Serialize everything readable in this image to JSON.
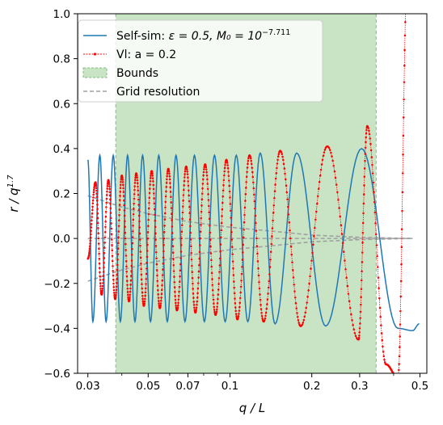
{
  "chart_data": {
    "type": "line",
    "xlabel": "q / L",
    "ylabel": "r / q^1.7",
    "x_scale": "log",
    "xlim": [
      0.0275,
      0.53
    ],
    "ylim": [
      -0.6,
      1.0
    ],
    "x_ticks": [
      0.03,
      0.05,
      0.07,
      0.1,
      0.2,
      0.3,
      0.5
    ],
    "x_tick_labels": [
      "0.03",
      "0.05",
      "0.07",
      "0.1",
      "0.2",
      "0.3",
      "0.5"
    ],
    "y_ticks": [
      -0.6,
      -0.4,
      -0.2,
      0.0,
      0.2,
      0.4,
      0.6,
      0.8,
      1.0
    ],
    "y_tick_labels": [
      "−0.6",
      "−0.4",
      "−0.2",
      "0.0",
      "0.2",
      "0.4",
      "0.6",
      "0.8",
      "1.0"
    ],
    "grid": false,
    "legend_position": "top-left",
    "bounds": {
      "x": [
        0.038,
        0.345
      ],
      "color": "#c9e4c5"
    },
    "series": [
      {
        "name": "Self-sim: ε = 0.5, M₀ = 10^−7.711",
        "color": "#1f77b4",
        "style": "solid",
        "peaks": [
          [
            0.03,
            0.35
          ],
          [
            0.0313,
            -0.37
          ],
          [
            0.0332,
            0.37
          ],
          [
            0.035,
            -0.37
          ],
          [
            0.0372,
            0.37
          ],
          [
            0.0395,
            -0.37
          ],
          [
            0.042,
            0.37
          ],
          [
            0.0447,
            -0.37
          ],
          [
            0.0477,
            0.37
          ],
          [
            0.051,
            -0.37
          ],
          [
            0.0547,
            0.37
          ],
          [
            0.0588,
            -0.37
          ],
          [
            0.0633,
            0.37
          ],
          [
            0.0683,
            -0.37
          ],
          [
            0.074,
            0.37
          ],
          [
            0.0805,
            -0.37
          ],
          [
            0.0877,
            0.37
          ],
          [
            0.096,
            -0.37
          ],
          [
            0.1055,
            0.37
          ],
          [
            0.1163,
            -0.37
          ],
          [
            0.1292,
            0.38
          ],
          [
            0.1465,
            -0.38
          ],
          [
            0.176,
            0.38
          ],
          [
            0.225,
            -0.39
          ],
          [
            0.305,
            0.4
          ],
          [
            0.415,
            -0.4
          ],
          [
            0.47,
            -0.41
          ],
          [
            0.497,
            -0.38
          ]
        ]
      },
      {
        "name": "Vl: a = 0.2",
        "color": "#ff0000",
        "style": "dotted",
        "peaks": [
          [
            0.03,
            -0.09
          ],
          [
            0.032,
            0.25
          ],
          [
            0.0337,
            -0.25
          ],
          [
            0.0357,
            0.26
          ],
          [
            0.0378,
            -0.27
          ],
          [
            0.04,
            0.28
          ],
          [
            0.0425,
            -0.28
          ],
          [
            0.0452,
            0.29
          ],
          [
            0.0482,
            -0.3
          ],
          [
            0.0515,
            0.3
          ],
          [
            0.0552,
            -0.31
          ],
          [
            0.0593,
            0.31
          ],
          [
            0.0638,
            -0.32
          ],
          [
            0.069,
            0.32
          ],
          [
            0.0746,
            -0.33
          ],
          [
            0.081,
            0.33
          ],
          [
            0.0885,
            -0.34
          ],
          [
            0.097,
            0.35
          ],
          [
            0.1065,
            -0.36
          ],
          [
            0.118,
            0.37
          ],
          [
            0.133,
            -0.37
          ],
          [
            0.153,
            0.39
          ],
          [
            0.182,
            -0.39
          ],
          [
            0.228,
            0.41
          ],
          [
            0.297,
            -0.45
          ],
          [
            0.32,
            0.5
          ],
          [
            0.375,
            -0.56
          ],
          [
            0.415,
            -0.62
          ],
          [
            0.45,
            1.2
          ]
        ]
      },
      {
        "name": "Grid resolution",
        "color": "#a0a0a0",
        "style": "dashed",
        "envelope": [
          [
            0.03,
            0.19
          ],
          [
            0.04,
            0.14
          ],
          [
            0.05,
            0.11
          ],
          [
            0.07,
            0.075
          ],
          [
            0.1,
            0.05
          ],
          [
            0.15,
            0.03
          ],
          [
            0.2,
            0.015
          ],
          [
            0.3,
            0.005
          ],
          [
            0.47,
            0.0
          ]
        ]
      }
    ],
    "legend": [
      {
        "label_main": "Self-sim: ",
        "label_math": "ε = 0.5, M₀ = 10",
        "label_sup": "−7.711",
        "kind": "line",
        "color": "#1f77b4"
      },
      {
        "label_main": "Vl: a = 0.2",
        "kind": "dotted",
        "color": "#ff0000"
      },
      {
        "label_main": "Bounds",
        "kind": "patch",
        "color": "#c9e4c5"
      },
      {
        "label_main": "Grid resolution",
        "kind": "dashed",
        "color": "#a0a0a0"
      }
    ]
  }
}
